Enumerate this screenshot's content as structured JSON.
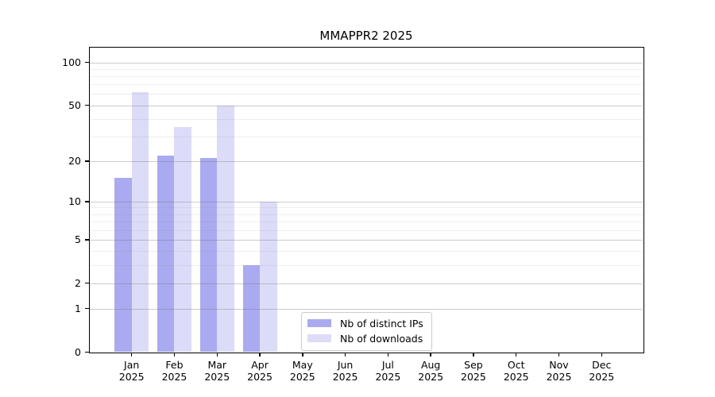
{
  "chart_data": {
    "type": "bar",
    "title": "MMAPPR2 2025",
    "categories": [
      {
        "month": "Jan",
        "year": "2025"
      },
      {
        "month": "Feb",
        "year": "2025"
      },
      {
        "month": "Mar",
        "year": "2025"
      },
      {
        "month": "Apr",
        "year": "2025"
      },
      {
        "month": "May",
        "year": "2025"
      },
      {
        "month": "Jun",
        "year": "2025"
      },
      {
        "month": "Jul",
        "year": "2025"
      },
      {
        "month": "Aug",
        "year": "2025"
      },
      {
        "month": "Sep",
        "year": "2025"
      },
      {
        "month": "Oct",
        "year": "2025"
      },
      {
        "month": "Nov",
        "year": "2025"
      },
      {
        "month": "Dec",
        "year": "2025"
      }
    ],
    "series": [
      {
        "name": "Nb of distinct IPs",
        "slug": "nb-of-distinct-ips",
        "color": "#aaaaf0",
        "values": [
          15,
          22,
          21,
          3,
          0,
          0,
          0,
          0,
          0,
          0,
          0,
          0
        ]
      },
      {
        "name": "Nb of downloads",
        "slug": "nb-of-downloads",
        "color": "#dcdcf8",
        "values": [
          62,
          35,
          50,
          10,
          0,
          0,
          0,
          0,
          0,
          0,
          0,
          0
        ]
      }
    ],
    "y_scale": "log1p",
    "y_major_ticks": [
      0,
      1,
      2,
      5,
      10,
      20,
      50,
      100
    ],
    "y_minor_ticks": [
      3,
      4,
      6,
      7,
      8,
      9,
      30,
      40,
      60,
      70,
      80,
      90
    ],
    "ylim": [
      0,
      126
    ],
    "xlabel": "",
    "ylabel": "",
    "grid": true,
    "legend_position": "bottom-center"
  }
}
